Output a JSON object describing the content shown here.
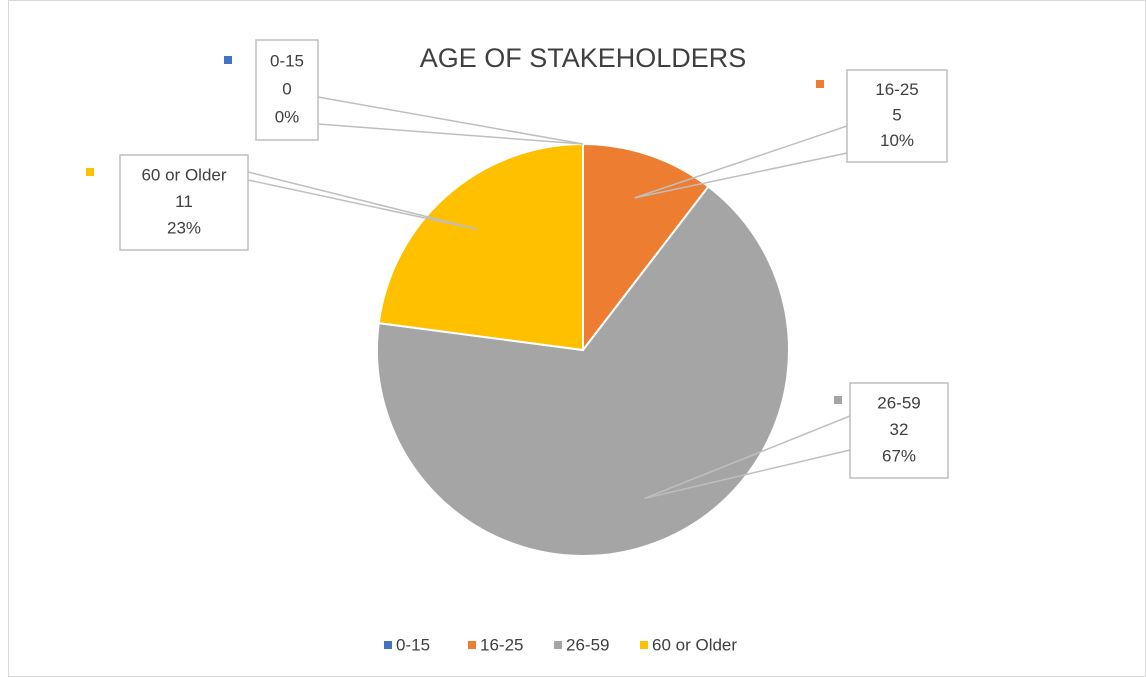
{
  "chart_data": {
    "type": "pie",
    "title": "AGE OF STAKEHOLDERS",
    "categories": [
      "0-15",
      "16-25",
      "26-59",
      "60 or Older"
    ],
    "values": [
      0,
      5,
      32,
      11
    ],
    "percent_labels": [
      "0%",
      "10%",
      "67%",
      "23%"
    ],
    "colors": [
      "#4472c4",
      "#ed7d31",
      "#a5a5a5",
      "#ffc000"
    ],
    "legend": "bottom"
  }
}
